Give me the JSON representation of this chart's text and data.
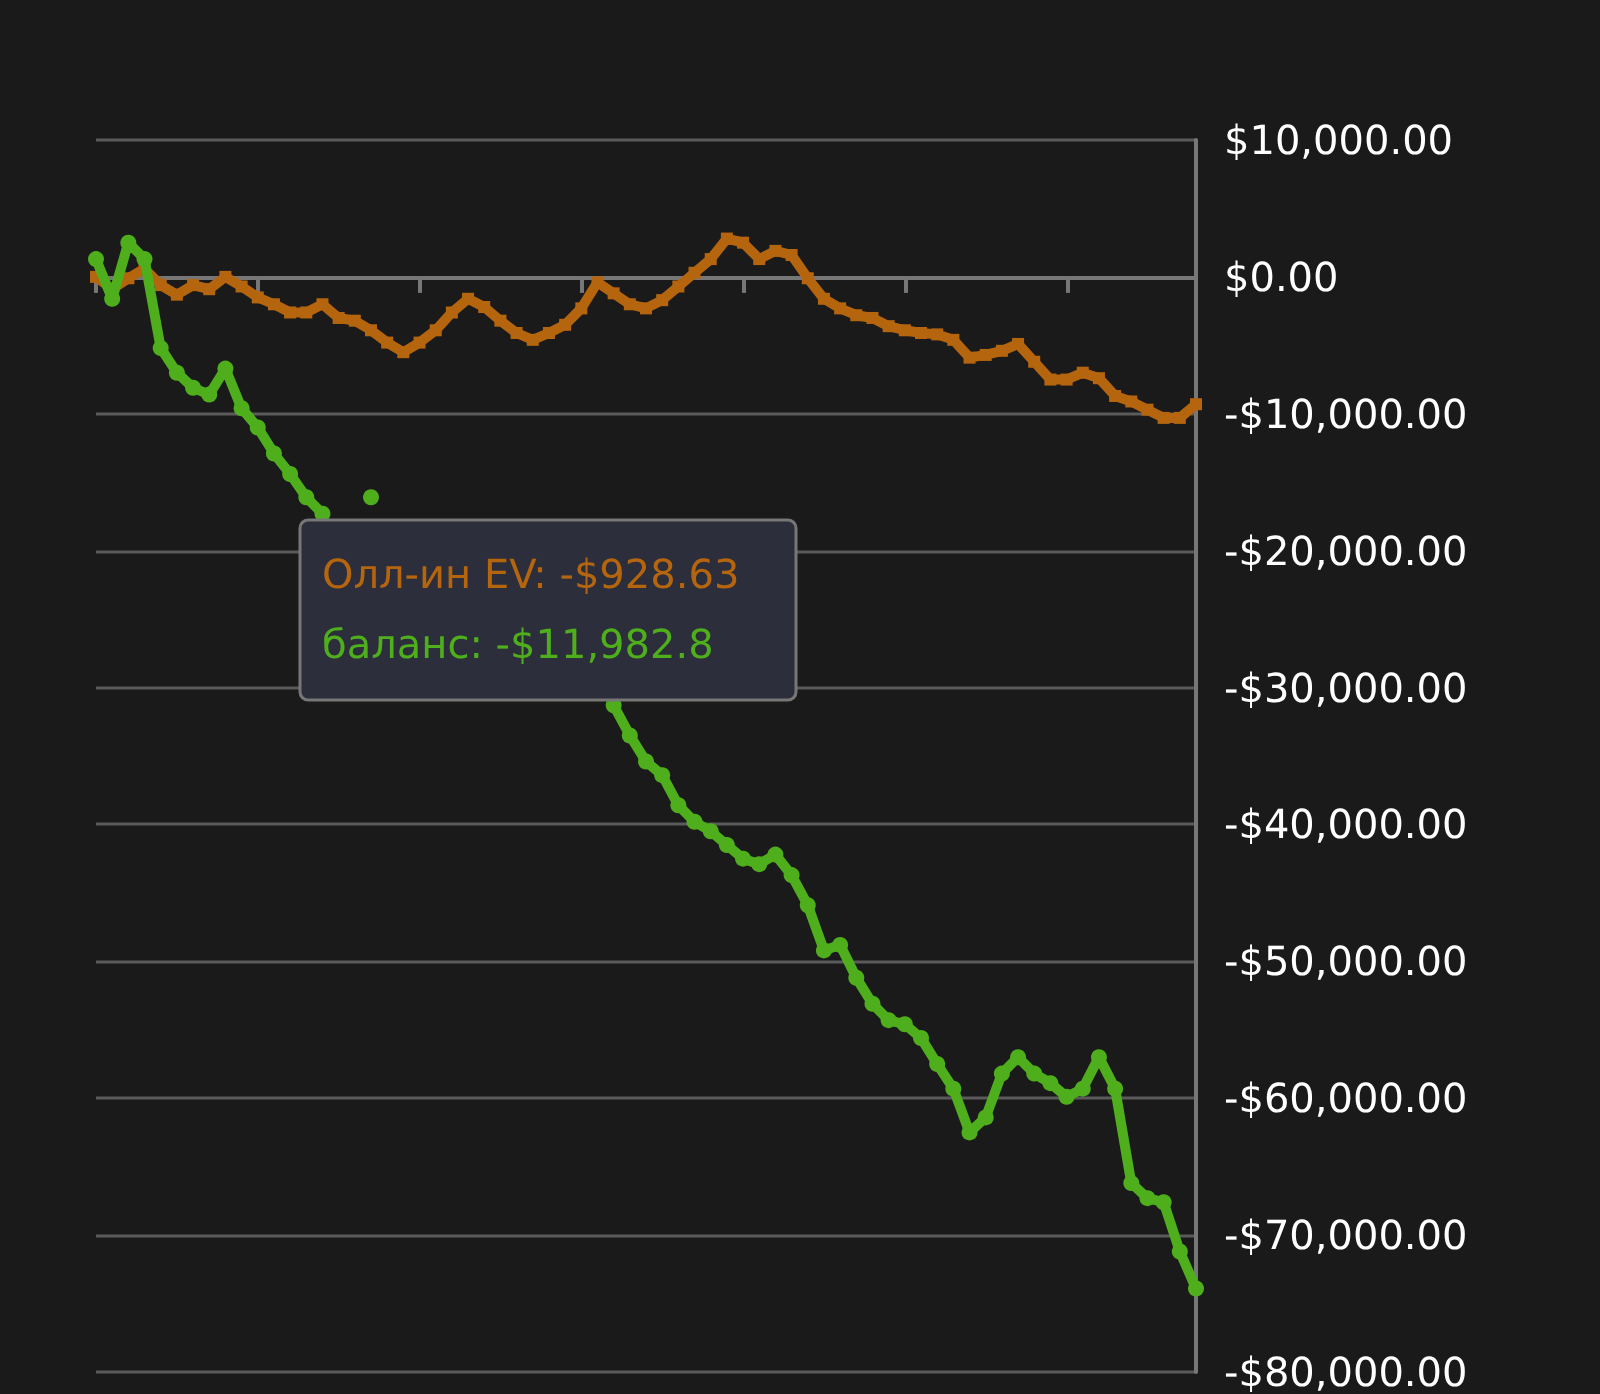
{
  "chart_data": {
    "type": "line",
    "categories": [
      null,
      null,
      null,
      null,
      null,
      null,
      null,
      null,
      null,
      null,
      null,
      null,
      null,
      null,
      null,
      null,
      null,
      null,
      null,
      null,
      null,
      null,
      null,
      null,
      null,
      null,
      null,
      null,
      null,
      null,
      null,
      null,
      null,
      null,
      null,
      null,
      null,
      null,
      null,
      null,
      null,
      null,
      null,
      null,
      null,
      null,
      null,
      null,
      null,
      null,
      null,
      null,
      null,
      null,
      null,
      null,
      null,
      null,
      null,
      null,
      null,
      null,
      null,
      null,
      null,
      null,
      null,
      null,
      null
    ],
    "series": [
      {
        "color": "#b5650d",
        "marker": "square",
        "values": [
          0,
          -900,
          -100,
          600,
          -600,
          -1300,
          -600,
          -900,
          0,
          -700,
          -1500,
          -2000,
          -2600,
          -2600,
          -2000,
          -3000,
          -3200,
          -3900,
          -4800,
          -5500,
          -4800,
          -3900,
          -2600,
          -1600,
          -2200,
          -3200,
          -4100,
          -4600,
          -4100,
          -3500,
          -2300,
          -400,
          -1200,
          -2000,
          -2300,
          -1700,
          -700,
          300,
          1300,
          2800,
          2500,
          1300,
          1900,
          1600,
          -100,
          -1600,
          -2300,
          -2800,
          -3000,
          -3600,
          -3900,
          -4100,
          -4200,
          -4600,
          -5900,
          -5700,
          -5400,
          -4900,
          -6200,
          -7500,
          -7500,
          -7000,
          -7400,
          -8700,
          -9100,
          -9700,
          -10300,
          -10300,
          -9300
        ]
      },
      {
        "color": "#4fae1c",
        "marker": "circle",
        "values": [
          1300,
          -1600,
          2500,
          1300,
          -5200,
          -7000,
          -8100,
          -8600,
          -6700,
          -9600,
          -11000,
          -12900,
          -14400,
          -16100,
          -17300,
          null,
          null,
          -16100,
          null,
          null,
          null,
          null,
          null,
          null,
          null,
          null,
          null,
          null,
          null,
          null,
          null,
          null,
          -31300,
          -33500,
          -35400,
          -36400,
          -38600,
          -39800,
          -40500,
          -41500,
          -42500,
          -42900,
          -42200,
          -43700,
          -45900,
          -49200,
          -48800,
          -51200,
          -53100,
          -54300,
          -54600,
          -55600,
          -57500,
          -59300,
          -62500,
          -61400,
          -58200,
          -57000,
          -58200,
          -58900,
          -59900,
          -59300,
          -57000,
          -59300,
          -66200,
          -67300,
          -67600,
          -71200,
          -73900
        ]
      }
    ],
    "ylim": [
      -80000,
      10000
    ],
    "yticks": [
      {
        "value": -80000,
        "label": "-$80,000.00"
      },
      {
        "value": -70000,
        "label": "-$70,000.00"
      },
      {
        "value": -60000,
        "label": "-$60,000.00"
      },
      {
        "value": -50000,
        "label": "-$50,000.00"
      },
      {
        "value": -40000,
        "label": "-$40,000.00"
      },
      {
        "value": -30000,
        "label": "-$30,000.00"
      },
      {
        "value": -20000,
        "label": "-$20,000.00"
      },
      {
        "value": -10000,
        "label": "-$10,000.00"
      },
      {
        "value": 0,
        "label": "$0.00"
      },
      {
        "value": 10000,
        "label": "$10,000.00"
      }
    ],
    "grid": "y",
    "tick_labels": "y",
    "legend": false,
    "annotations": [
      "Олл-ин EV: -$928.63",
      "баланс: -$11,982.8"
    ]
  }
}
